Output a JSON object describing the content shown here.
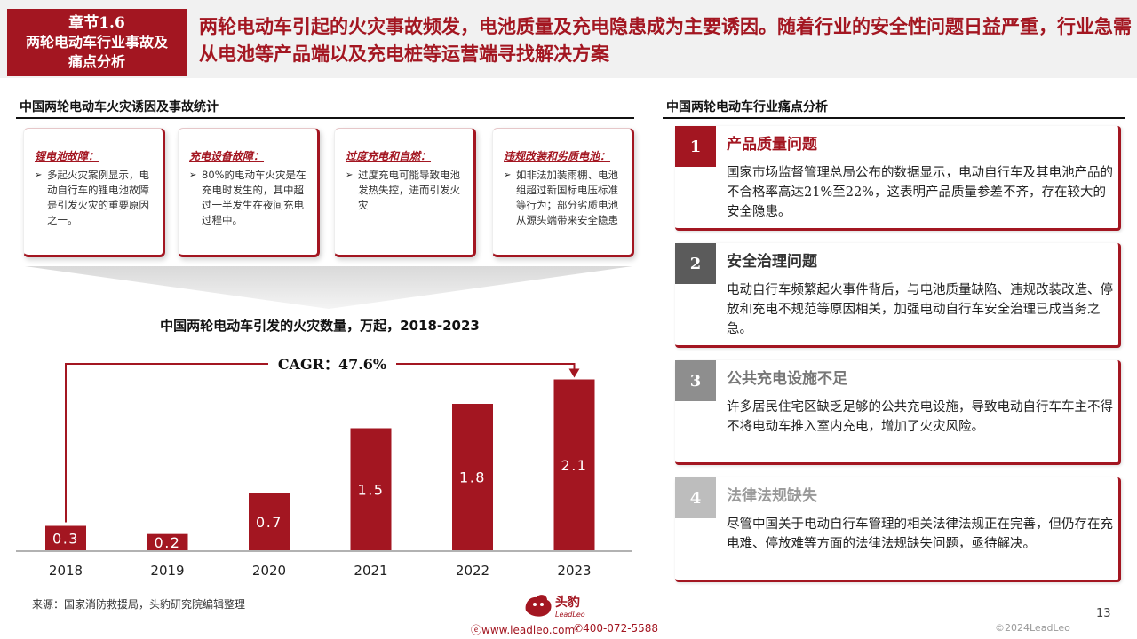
{
  "header": {
    "chapter_number": "章节1.6",
    "chapter_title": "两轮电动车行业事故及痛点分析",
    "headline": "两轮电动车引起的火灾事故频发，电池质量及充电隐患成为主要诱因。随着行业的安全性问题日益严重，行业急需从电池等产品端以及充电桩等运营端寻找解决方案"
  },
  "left_section": {
    "title": "中国两轮电动车火灾诱因及事故统计",
    "causes": [
      {
        "tag": "锂电池故障：",
        "text": "多起火灾案例显示，电动自行车的锂电池故障是引发火灾的重要原因之一。"
      },
      {
        "tag": "充电设备故障：",
        "text": "80%的电动车火灾是在充电时发生的，其中超过一半发生在夜间充电过程中。"
      },
      {
        "tag": "过度充电和自燃：",
        "text": "过度充电可能导致电池发热失控，进而引发火灾"
      },
      {
        "tag": "违规改装和劣质电池：",
        "text": "如非法加装雨棚、电池组超过新国标电压标准等行为；部分劣质电池从源头端带来安全隐患"
      }
    ]
  },
  "chart_data": {
    "type": "bar",
    "title": "中国两轮电动车引发的火灾数量，万起，2018-2023",
    "categories": [
      "2018",
      "2019",
      "2020",
      "2021",
      "2022",
      "2023"
    ],
    "values": [
      0.3,
      0.2,
      0.7,
      1.5,
      1.8,
      2.1
    ],
    "data_labels": [
      "0.3",
      "0.2",
      "0.7",
      "1.5",
      "1.8",
      "2.1"
    ],
    "annotation": "CAGR：47.6%",
    "ylim": [
      0,
      2.4
    ],
    "grid": false,
    "bar_color": "#a31621"
  },
  "source": "来源：国家消防救援局，头豹研究院编辑整理",
  "right_section": {
    "title": "中国两轮电动车行业痛点分析",
    "items": [
      {
        "num": "1",
        "title": "产品质量问题",
        "body": "国家市场监督管理总局公布的数据显示，电动自行车及其电池产品的不合格率高达21%至22%，这表明产品质量参差不齐，存在较大的安全隐患。",
        "color": "#a31621"
      },
      {
        "num": "2",
        "title": "安全治理问题",
        "body": "电动自行车频繁起火事件背后，与电池质量缺陷、违规改装改造、停放和充电不规范等原因相关，加强电动自行车安全治理已成当务之急。",
        "color": "#5b5b5b"
      },
      {
        "num": "3",
        "title": "公共充电设施不足",
        "body": "许多居民住宅区缺乏足够的公共充电设施，导致电动自行车车主不得不将电动车推入室内充电，增加了火灾风险。",
        "color": "#8e8e8e"
      },
      {
        "num": "4",
        "title": "法律法规缺失",
        "body": "尽管中国关于电动自行车管理的相关法律法规正在完善，但仍存在充电难、停放难等方面的法律法规缺失问题，亟待解决。",
        "color": "#bdbdbd"
      }
    ]
  },
  "logo": {
    "name": "头豹",
    "sub": "LeadLeo"
  },
  "footer": {
    "website": "www.leadleo.com",
    "phone": "400-072-5588",
    "page": "13",
    "copyright": "©2024LeadLeo"
  },
  "colors": {
    "brand": "#a31621",
    "header_bg": "#f1f1f1"
  }
}
